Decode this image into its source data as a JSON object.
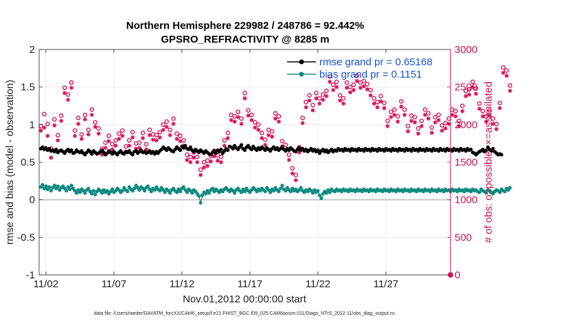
{
  "chart_data": {
    "type": "line",
    "title_line1": "Northern Hemisphere 229982 / 248786 = 92.442%",
    "title_line2": "GPSRO_REFRACTIVITY @ 8285 m",
    "xlabel": "Nov.01,2012 00:00:00 start",
    "ylabel_left": "rmse and bias (model - observation)",
    "ylabel_right": "# of obs: o=possible; ×=assimilated",
    "footer": "data file: /Users/raeder/DAI/ATM_forcXX/CAM6_setup/f.e21.FHIST_BGC.f09_025.CAM6assim.011/Diags_NTrS_2012-11/obs_diag_output.nc",
    "xlim": [
      0.5,
      30.75
    ],
    "ylim_left": [
      -1,
      2
    ],
    "ylim_right": [
      0,
      3000
    ],
    "x_ticks": [
      1,
      6,
      11,
      16,
      21,
      26
    ],
    "x_tick_labels": [
      "11/02",
      "11/07",
      "11/12",
      "11/17",
      "11/22",
      "11/27"
    ],
    "y_left_ticks": [
      -1,
      -0.5,
      0,
      0.5,
      1,
      1.5,
      2
    ],
    "y_left_tick_labels": [
      "-1",
      "-0.5",
      "0",
      "0.5",
      "1",
      "1.5",
      "2"
    ],
    "y_right_ticks": [
      0,
      500,
      1000,
      1500,
      2000,
      2500,
      3000
    ],
    "y_right_tick_labels": [
      "0",
      "500",
      "1000",
      "1500",
      "2000",
      "2500",
      "3000"
    ],
    "legend": [
      {
        "label": "rmse grand pr = 0.65168",
        "color": "#000000"
      },
      {
        "label": "bias grand pr = 0.1151",
        "color": "#0f8a80"
      }
    ],
    "colors": {
      "rmse": "#000000",
      "bias": "#0f8a80",
      "obs": "#d8145a",
      "zero_line": "#bdbdbd",
      "grid": "#dddddd",
      "right_axis": "#c8124f"
    },
    "series": [
      {
        "name": "rmse",
        "axis": "left",
        "values": [
          0.68,
          0.7,
          0.67,
          0.69,
          0.66,
          0.68,
          0.65,
          0.66,
          0.64,
          0.67,
          0.63,
          0.65,
          0.66,
          0.64,
          0.62,
          0.65,
          0.67,
          0.64,
          0.66,
          0.62,
          0.63,
          0.66,
          0.64,
          0.63,
          0.65,
          0.62,
          0.6,
          0.63,
          0.66,
          0.64,
          0.61,
          0.65,
          0.63,
          0.61,
          0.62,
          0.64,
          0.66,
          0.63,
          0.6,
          0.62,
          0.65,
          0.63,
          0.61,
          0.64,
          0.62,
          0.6,
          0.63,
          0.65,
          0.62,
          0.61,
          0.64,
          0.63,
          0.65,
          0.62,
          0.6,
          0.64,
          0.65,
          0.62,
          0.64,
          0.66,
          0.63,
          0.64,
          0.62,
          0.63,
          0.65,
          0.62,
          0.64,
          0.61,
          0.64,
          0.62,
          0.65,
          0.67,
          0.7,
          0.68,
          0.66,
          0.69,
          0.67,
          0.65,
          0.64,
          0.67,
          0.7,
          0.68,
          0.66,
          0.71,
          0.69,
          0.72,
          0.68,
          0.67,
          0.7,
          0.66,
          0.64,
          0.67,
          0.65,
          0.63,
          0.66,
          0.64,
          0.62,
          0.65,
          0.63,
          0.61,
          0.6,
          0.63,
          0.65,
          0.62,
          0.66,
          0.64,
          0.67,
          0.62,
          0.65,
          0.68,
          0.66,
          0.71,
          0.7,
          0.68,
          0.72,
          0.69,
          0.67,
          0.7,
          0.73,
          0.68,
          0.66,
          0.7,
          0.72,
          0.69,
          0.67,
          0.71,
          0.68,
          0.66,
          0.69,
          0.67,
          0.7,
          0.68,
          0.66,
          0.69,
          0.67,
          0.65,
          0.68,
          0.7,
          0.67,
          0.69,
          0.66,
          0.68,
          0.7,
          0.67,
          0.65,
          0.68,
          0.66,
          0.69,
          0.67,
          0.65,
          0.64,
          0.67,
          0.69,
          0.66,
          0.68,
          0.65,
          0.67,
          0.64,
          0.66,
          0.68,
          0.65,
          0.67,
          0.64,
          0.66,
          0.62,
          0.65,
          0.67,
          0.64,
          0.66,
          0.63,
          0.65,
          0.67,
          0.64,
          0.66,
          0.65,
          0.68,
          0.66,
          0.67,
          0.65,
          0.68,
          0.66,
          0.67,
          0.65,
          0.68,
          0.66,
          0.67,
          0.65,
          0.68,
          0.66,
          0.67,
          0.65,
          0.68,
          0.66,
          0.67,
          0.65,
          0.68,
          0.66,
          0.67,
          0.65,
          0.68,
          0.66,
          0.67,
          0.65,
          0.68,
          0.66,
          0.67,
          0.65,
          0.68,
          0.66,
          0.67,
          0.65,
          0.68,
          0.66,
          0.67,
          0.65,
          0.68,
          0.66,
          0.67,
          0.65,
          0.68,
          0.66,
          0.67,
          0.65,
          0.68,
          0.66,
          0.67,
          0.65,
          0.68,
          0.66,
          0.67,
          0.65,
          0.68,
          0.66,
          0.67,
          0.65,
          0.68,
          0.66,
          0.67,
          0.65,
          0.68,
          0.66,
          0.67,
          0.65,
          0.68,
          0.66,
          0.67,
          0.65,
          0.68,
          0.66,
          0.67,
          0.65,
          0.68,
          0.66,
          0.67,
          0.63,
          0.62,
          0.6,
          0.62,
          0.64,
          0.65,
          0.67,
          0.64,
          0.66,
          0.7,
          0.67,
          0.65,
          0.68,
          0.64,
          0.62,
          0.6,
          0.61,
          0.6
        ]
      },
      {
        "name": "bias",
        "axis": "left",
        "values": [
          0.17,
          0.2,
          0.15,
          0.18,
          0.14,
          0.17,
          0.12,
          0.16,
          0.19,
          0.15,
          0.18,
          0.13,
          0.16,
          0.18,
          0.15,
          0.12,
          0.17,
          0.14,
          0.19,
          0.15,
          0.12,
          0.09,
          0.13,
          0.1,
          0.14,
          0.12,
          0.09,
          0.13,
          0.15,
          0.11,
          0.08,
          0.12,
          0.07,
          0.11,
          0.14,
          0.12,
          0.09,
          0.13,
          0.1,
          0.12,
          0.08,
          0.11,
          0.14,
          0.1,
          0.12,
          0.15,
          0.13,
          0.1,
          0.12,
          0.16,
          0.13,
          0.11,
          0.17,
          0.14,
          0.12,
          0.15,
          0.19,
          0.16,
          0.13,
          0.17,
          0.15,
          0.12,
          0.16,
          0.18,
          0.14,
          0.11,
          0.15,
          0.13,
          0.17,
          0.14,
          0.12,
          0.16,
          0.13,
          0.1,
          0.14,
          0.12,
          0.09,
          0.13,
          0.15,
          0.12,
          0.1,
          0.14,
          0.11,
          0.15,
          0.17,
          0.13,
          0.1,
          0.14,
          0.12,
          0.09,
          0.13,
          0.11,
          0.08,
          0.05,
          -0.04,
          0.06,
          0.1,
          0.08,
          0.12,
          0.09,
          0.13,
          0.15,
          0.11,
          0.14,
          0.12,
          0.1,
          0.13,
          0.11,
          0.14,
          0.16,
          0.13,
          0.11,
          0.14,
          0.12,
          0.09,
          0.13,
          0.15,
          0.12,
          0.1,
          0.14,
          0.11,
          0.15,
          0.12,
          0.1,
          0.13,
          0.16,
          0.14,
          0.11,
          0.14,
          0.12,
          0.15,
          0.13,
          0.11,
          0.16,
          0.13,
          0.1,
          0.14,
          0.12,
          0.16,
          0.13,
          0.11,
          0.15,
          0.19,
          0.14,
          0.12,
          0.16,
          0.13,
          0.11,
          0.15,
          0.12,
          0.14,
          0.11,
          0.13,
          0.16,
          0.12,
          0.1,
          0.13,
          0.11,
          0.14,
          0.12,
          0.09,
          0.13,
          0.1,
          0.12,
          0.06,
          0.02,
          0.08,
          0.11,
          0.09,
          0.13,
          0.1,
          0.14,
          0.12,
          0.11,
          0.14,
          0.12,
          0.13,
          0.11,
          0.14,
          0.12,
          0.13,
          0.11,
          0.14,
          0.12,
          0.13,
          0.11,
          0.14,
          0.12,
          0.13,
          0.11,
          0.14,
          0.12,
          0.13,
          0.11,
          0.14,
          0.12,
          0.13,
          0.11,
          0.14,
          0.12,
          0.13,
          0.11,
          0.14,
          0.12,
          0.13,
          0.11,
          0.14,
          0.12,
          0.13,
          0.11,
          0.14,
          0.12,
          0.13,
          0.11,
          0.14,
          0.12,
          0.13,
          0.11,
          0.14,
          0.12,
          0.13,
          0.11,
          0.14,
          0.12,
          0.13,
          0.11,
          0.14,
          0.12,
          0.13,
          0.11,
          0.14,
          0.12,
          0.13,
          0.11,
          0.14,
          0.12,
          0.13,
          0.11,
          0.14,
          0.12,
          0.13,
          0.11,
          0.14,
          0.12,
          0.13,
          0.11,
          0.14,
          0.12,
          0.13,
          0.11,
          0.14,
          0.12,
          0.13,
          0.11,
          0.14,
          0.12,
          0.13,
          0.11,
          0.1,
          0.14,
          0.12,
          0.11,
          0.09,
          0.13,
          0.12,
          0.1,
          0.08,
          0.11,
          0.13,
          0.12,
          0.1,
          0.14,
          0.12,
          0.11,
          0.15,
          0.13,
          0.16
        ]
      },
      {
        "name": "obs possible (o)",
        "axis": "right",
        "values": [
          1980,
          2060,
          2140,
          2180,
          2010,
          1950,
          1680,
          1890,
          2070,
          2000,
          1860,
          1970,
          2120,
          2060,
          2490,
          2310,
          2400,
          1980,
          2560,
          2060,
          1920,
          1990,
          2090,
          2040,
          1870,
          1950,
          2130,
          2020,
          1930,
          1990,
          2200,
          1850,
          2030,
          1720,
          1950,
          2180,
          1680,
          1860,
          1760,
          1900,
          1850,
          1830,
          1740,
          1980,
          1790,
          1700,
          1880,
          1650,
          1920,
          1820,
          1710,
          1880,
          1790,
          1690,
          1900,
          1860,
          1750,
          1830,
          1760,
          1690,
          1890,
          1800,
          1740,
          2010,
          1930,
          1850,
          1870,
          1770,
          1860,
          1680,
          1900,
          2090,
          2000,
          1950,
          2040,
          1890,
          1930,
          2140,
          2080,
          1830,
          1880,
          1770,
          1850,
          1630,
          1790,
          1730,
          1600,
          1680,
          1570,
          1610,
          1630,
          1530,
          1570,
          1440,
          1400,
          1480,
          1500,
          1410,
          1520,
          1630,
          1580,
          1550,
          1650,
          1470,
          1590,
          1700,
          1570,
          1660,
          1790,
          1850,
          1890,
          2060,
          2130,
          1930,
          2110,
          2210,
          2170,
          2300,
          2080,
          2160,
          2420,
          2250,
          2190,
          2380,
          2130,
          2270,
          2030,
          2090,
          2000,
          1950,
          1890,
          1980,
          1800,
          1840,
          1930,
          2030,
          1910,
          2250,
          2150,
          2220,
          2110,
          1840,
          1780,
          1920,
          1730,
          1650,
          1600,
          1530,
          1420,
          1350,
          1330,
          1460,
          1700,
          1880,
          2090,
          2220,
          2300,
          2190,
          2390,
          2500,
          2260,
          2340,
          2420,
          2480,
          2350,
          2240,
          2400,
          2580,
          2450,
          2360,
          2640,
          2720,
          2530,
          2480,
          2570,
          2610,
          2390,
          2460,
          2350,
          2240,
          2560,
          2630,
          2500,
          2700,
          2530,
          2470,
          2650,
          2800,
          2560,
          2690,
          2580,
          2780,
          2540,
          2620,
          2460,
          2390,
          2350,
          2500,
          2300,
          2250,
          2380,
          2460,
          2290,
          2130,
          2050,
          2240,
          2170,
          2320,
          2200,
          2080,
          2110,
          2050,
          2310,
          2250,
          2200,
          2030,
          1980,
          2090,
          2120,
          2150,
          2100,
          2080,
          1950,
          2010,
          2050,
          2000,
          2200,
          2100,
          2150,
          2040,
          1960,
          2020,
          2100,
          2080,
          2130,
          2030,
          1990,
          2050,
          2020,
          2010,
          2080,
          2300,
          2200,
          2130,
          2180,
          2100,
          2050,
          2150,
          2250,
          2200,
          2450,
          2530,
          2470,
          2680,
          2570,
          2630,
          2480,
          2520,
          2280,
          2340,
          2180,
          2260,
          2110,
          2060,
          2190,
          2130,
          2080,
          2200,
          2010,
          2380,
          2290,
          2650,
          2760,
          2860,
          2720,
          2600,
          2520
        ]
      },
      {
        "name": "obs assimilated (*)",
        "axis": "right",
        "values": [
          1920,
          1980,
          1960,
          2010,
          1850,
          1760,
          1560,
          1830,
          1990,
          1950,
          1790,
          1920,
          2050,
          1990,
          2420,
          2240,
          2330,
          1900,
          2490,
          1990,
          1850,
          1940,
          2010,
          1970,
          1810,
          1880,
          2070,
          1950,
          1870,
          1930,
          2130,
          1790,
          1970,
          1660,
          1880,
          2110,
          1600,
          1790,
          1690,
          1840,
          1780,
          1760,
          1670,
          1920,
          1720,
          1640,
          1810,
          1580,
          1850,
          1760,
          1640,
          1820,
          1720,
          1620,
          1830,
          1790,
          1680,
          1760,
          1690,
          1620,
          1820,
          1730,
          1670,
          1940,
          1860,
          1780,
          1800,
          1700,
          1790,
          1610,
          1830,
          2020,
          1930,
          1880,
          1970,
          1820,
          1860,
          2070,
          2010,
          1760,
          1810,
          1700,
          1780,
          1560,
          1720,
          1660,
          1530,
          1610,
          1500,
          1540,
          1560,
          1460,
          1500,
          1370,
          1330,
          1410,
          1430,
          1340,
          1450,
          1560,
          1510,
          1480,
          1580,
          1400,
          1520,
          1630,
          1500,
          1590,
          1720,
          1780,
          1820,
          1990,
          2060,
          1860,
          2040,
          2140,
          2100,
          2230,
          2010,
          2090,
          2350,
          2180,
          2120,
          2310,
          2060,
          2200,
          1960,
          2020,
          1930,
          1880,
          1820,
          1910,
          1730,
          1770,
          1860,
          1960,
          1840,
          2180,
          2080,
          2150,
          2040,
          1770,
          1710,
          1850,
          1660,
          1580,
          1530,
          1460,
          1350,
          1280,
          1260,
          1390,
          1630,
          1810,
          2020,
          2150,
          2230,
          2120,
          2320,
          2430,
          2190,
          2270,
          2350,
          2410,
          2280,
          2170,
          2330,
          2510,
          2380,
          2290,
          2570,
          2650,
          2460,
          2410,
          2500,
          2540,
          2320,
          2390,
          2280,
          2170,
          2490,
          2560,
          2430,
          2630,
          2460,
          2400,
          2580,
          2730,
          2490,
          2620,
          2510,
          2710,
          2470,
          2550,
          2390,
          2320,
          2280,
          2430,
          2230,
          2180,
          2310,
          2390,
          2220,
          2060,
          1980,
          2170,
          2100,
          2250,
          2130,
          2010,
          2040,
          1980,
          2240,
          2180,
          2130,
          1960,
          1910,
          2020,
          2050,
          2080,
          2030,
          2010,
          1880,
          1940,
          1980,
          1930,
          2130,
          2030,
          2080,
          1970,
          1890,
          1950,
          2030,
          2010,
          2060,
          1960,
          1920,
          1980,
          1950,
          1940,
          2010,
          2230,
          2130,
          2060,
          2110,
          2030,
          1980,
          2080,
          2180,
          2130,
          2380,
          2460,
          2400,
          2610,
          2500,
          2560,
          2410,
          2450,
          2210,
          2270,
          2110,
          2190,
          2040,
          1990,
          2120,
          2060,
          2010,
          2130,
          1940,
          2310,
          2220,
          2580,
          2690,
          2790,
          2650,
          2530,
          2450
        ]
      }
    ]
  }
}
